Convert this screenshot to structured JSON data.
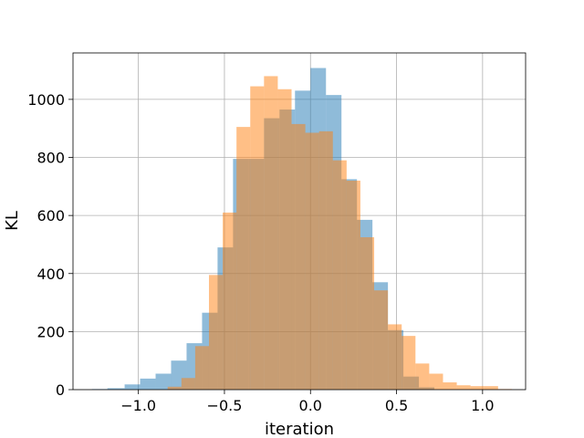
{
  "chart_data": {
    "type": "histogram",
    "xlabel": "iteration",
    "ylabel": "KL",
    "xlim": [
      -1.38,
      1.25
    ],
    "ylim": [
      0,
      1160
    ],
    "grid": true,
    "legend": "none",
    "x_ticks": [
      -1.0,
      -0.5,
      0.0,
      0.5,
      1.0
    ],
    "x_tick_labels": [
      "−1.0",
      "−0.5",
      "0.0",
      "0.5",
      "1.0"
    ],
    "y_ticks": [
      0,
      200,
      400,
      600,
      800,
      1000
    ],
    "y_tick_labels": [
      "0",
      "200",
      "400",
      "600",
      "800",
      "1000"
    ],
    "series": [
      {
        "color": "#1f77b4",
        "alpha": 0.5,
        "bins": [
          [
            -1.27,
            -1.18,
            2
          ],
          [
            -1.18,
            -1.08,
            5
          ],
          [
            -1.08,
            -0.99,
            18
          ],
          [
            -0.99,
            -0.9,
            38
          ],
          [
            -0.9,
            -0.81,
            55
          ],
          [
            -0.81,
            -0.72,
            100
          ],
          [
            -0.72,
            -0.63,
            160
          ],
          [
            -0.63,
            -0.54,
            265
          ],
          [
            -0.54,
            -0.45,
            490
          ],
          [
            -0.45,
            -0.36,
            795
          ],
          [
            -0.36,
            -0.27,
            795
          ],
          [
            -0.27,
            -0.18,
            935
          ],
          [
            -0.18,
            -0.09,
            965
          ],
          [
            -0.09,
            0.0,
            1030
          ],
          [
            0.0,
            0.09,
            1108
          ],
          [
            0.09,
            0.18,
            1015
          ],
          [
            0.18,
            0.27,
            725
          ],
          [
            0.27,
            0.36,
            585
          ],
          [
            0.36,
            0.45,
            370
          ],
          [
            0.45,
            0.54,
            205
          ],
          [
            0.54,
            0.63,
            45
          ],
          [
            0.63,
            0.72,
            8
          ]
        ]
      },
      {
        "color": "#ff7f0e",
        "alpha": 0.5,
        "bins": [
          [
            -0.83,
            -0.75,
            10
          ],
          [
            -0.75,
            -0.67,
            40
          ],
          [
            -0.67,
            -0.59,
            150
          ],
          [
            -0.59,
            -0.51,
            395
          ],
          [
            -0.51,
            -0.43,
            610
          ],
          [
            -0.43,
            -0.35,
            905
          ],
          [
            -0.35,
            -0.27,
            1045
          ],
          [
            -0.27,
            -0.19,
            1080
          ],
          [
            -0.19,
            -0.11,
            1035
          ],
          [
            -0.11,
            -0.03,
            915
          ],
          [
            -0.03,
            0.05,
            885
          ],
          [
            0.05,
            0.13,
            890
          ],
          [
            0.13,
            0.21,
            790
          ],
          [
            0.21,
            0.29,
            720
          ],
          [
            0.29,
            0.37,
            525
          ],
          [
            0.37,
            0.45,
            342
          ],
          [
            0.45,
            0.53,
            225
          ],
          [
            0.53,
            0.61,
            185
          ],
          [
            0.61,
            0.69,
            90
          ],
          [
            0.69,
            0.77,
            55
          ],
          [
            0.77,
            0.85,
            25
          ],
          [
            0.85,
            0.93,
            15
          ],
          [
            0.93,
            1.01,
            12
          ],
          [
            1.01,
            1.09,
            12
          ],
          [
            1.09,
            1.17,
            2
          ]
        ]
      }
    ]
  }
}
